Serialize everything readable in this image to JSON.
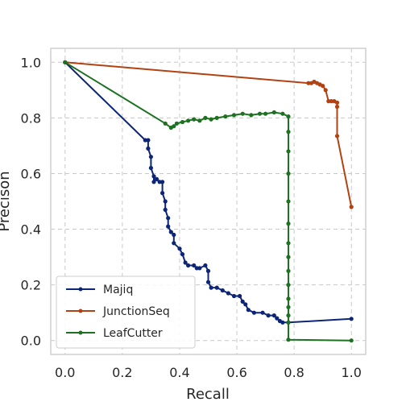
{
  "chart_data": {
    "type": "line",
    "xlabel": "Recall",
    "ylabel": "Precison",
    "xlim": [
      -0.05,
      1.05
    ],
    "ylim": [
      -0.05,
      1.05
    ],
    "xticks": [
      0.0,
      0.2,
      0.4,
      0.6,
      0.8,
      1.0
    ],
    "yticks": [
      0.0,
      0.2,
      0.4,
      0.6,
      0.8,
      1.0
    ],
    "xtick_labels": [
      "0.0",
      "0.2",
      "0.4",
      "0.6",
      "0.8",
      "1.0"
    ],
    "ytick_labels": [
      "0.0",
      "0.2",
      "0.4",
      "0.6",
      "0.8",
      "1.0"
    ],
    "grid": true,
    "legend_position": "bottom-left",
    "series": [
      {
        "name": "Majiq",
        "color": "#0c2577",
        "points": [
          [
            0.0,
            1.0
          ],
          [
            0.28,
            0.72
          ],
          [
            0.29,
            0.72
          ],
          [
            0.29,
            0.69
          ],
          [
            0.3,
            0.66
          ],
          [
            0.3,
            0.62
          ],
          [
            0.31,
            0.59
          ],
          [
            0.31,
            0.57
          ],
          [
            0.32,
            0.58
          ],
          [
            0.33,
            0.57
          ],
          [
            0.34,
            0.57
          ],
          [
            0.34,
            0.53
          ],
          [
            0.35,
            0.5
          ],
          [
            0.35,
            0.47
          ],
          [
            0.36,
            0.44
          ],
          [
            0.36,
            0.41
          ],
          [
            0.37,
            0.39
          ],
          [
            0.38,
            0.38
          ],
          [
            0.38,
            0.35
          ],
          [
            0.4,
            0.33
          ],
          [
            0.41,
            0.31
          ],
          [
            0.42,
            0.28
          ],
          [
            0.43,
            0.27
          ],
          [
            0.45,
            0.27
          ],
          [
            0.46,
            0.26
          ],
          [
            0.47,
            0.26
          ],
          [
            0.49,
            0.27
          ],
          [
            0.5,
            0.25
          ],
          [
            0.5,
            0.21
          ],
          [
            0.51,
            0.19
          ],
          [
            0.53,
            0.19
          ],
          [
            0.55,
            0.18
          ],
          [
            0.57,
            0.17
          ],
          [
            0.59,
            0.16
          ],
          [
            0.61,
            0.16
          ],
          [
            0.62,
            0.14
          ],
          [
            0.63,
            0.13
          ],
          [
            0.64,
            0.11
          ],
          [
            0.66,
            0.1
          ],
          [
            0.69,
            0.1
          ],
          [
            0.71,
            0.09
          ],
          [
            0.73,
            0.09
          ],
          [
            0.74,
            0.08
          ],
          [
            0.75,
            0.07
          ],
          [
            0.76,
            0.065
          ],
          [
            0.78,
            0.065
          ],
          [
            1.0,
            0.078
          ]
        ]
      },
      {
        "name": "JunctionSeq",
        "color": "#b34213",
        "points": [
          [
            0.0,
            1.0
          ],
          [
            0.85,
            0.925
          ],
          [
            0.86,
            0.925
          ],
          [
            0.87,
            0.93
          ],
          [
            0.88,
            0.925
          ],
          [
            0.89,
            0.92
          ],
          [
            0.9,
            0.915
          ],
          [
            0.91,
            0.9
          ],
          [
            0.92,
            0.86
          ],
          [
            0.93,
            0.86
          ],
          [
            0.94,
            0.86
          ],
          [
            0.95,
            0.855
          ],
          [
            0.95,
            0.84
          ],
          [
            0.95,
            0.735
          ],
          [
            1.0,
            0.48
          ]
        ]
      },
      {
        "name": "LeafCutter",
        "color": "#1d7120",
        "points": [
          [
            0.0,
            1.0
          ],
          [
            0.35,
            0.78
          ],
          [
            0.37,
            0.765
          ],
          [
            0.38,
            0.77
          ],
          [
            0.39,
            0.78
          ],
          [
            0.41,
            0.785
          ],
          [
            0.43,
            0.79
          ],
          [
            0.45,
            0.795
          ],
          [
            0.47,
            0.79
          ],
          [
            0.49,
            0.8
          ],
          [
            0.51,
            0.795
          ],
          [
            0.53,
            0.8
          ],
          [
            0.56,
            0.805
          ],
          [
            0.59,
            0.81
          ],
          [
            0.62,
            0.815
          ],
          [
            0.65,
            0.81
          ],
          [
            0.68,
            0.815
          ],
          [
            0.7,
            0.815
          ],
          [
            0.73,
            0.82
          ],
          [
            0.76,
            0.815
          ],
          [
            0.78,
            0.805
          ],
          [
            0.78,
            0.75
          ],
          [
            0.78,
            0.68
          ],
          [
            0.78,
            0.6
          ],
          [
            0.78,
            0.5
          ],
          [
            0.78,
            0.42
          ],
          [
            0.78,
            0.35
          ],
          [
            0.78,
            0.3
          ],
          [
            0.78,
            0.25
          ],
          [
            0.78,
            0.2
          ],
          [
            0.78,
            0.15
          ],
          [
            0.78,
            0.12
          ],
          [
            0.78,
            0.09
          ],
          [
            0.78,
            0.065
          ],
          [
            0.78,
            0.003
          ],
          [
            1.0,
            0.0
          ]
        ]
      }
    ]
  }
}
